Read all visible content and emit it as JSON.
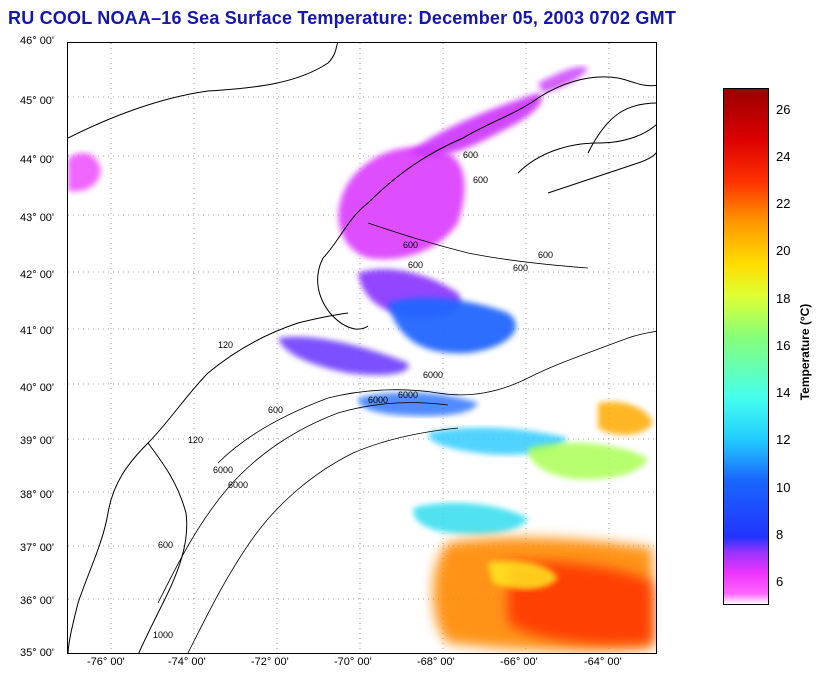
{
  "title": "RU COOL  NOAA–16  Sea Surface Temperature:  December 05, 2003 0702 GMT",
  "y_ticks": [
    "46° 00'",
    "45° 00'",
    "44° 00'",
    "43° 00'",
    "42° 00'",
    "41° 00'",
    "40° 00'",
    "39° 00'",
    "38° 00'",
    "37° 00'",
    "36° 00'",
    "35° 00'"
  ],
  "x_ticks": [
    "-76° 00'",
    "-74° 00'",
    "-72° 00'",
    "-70° 00'",
    "-68° 00'",
    "-66° 00'",
    "-64° 00'"
  ],
  "colorbar": {
    "title": "Temperature (°C)",
    "ticks": [
      "26",
      "24",
      "22",
      "20",
      "18",
      "16",
      "14",
      "12",
      "10",
      "8",
      "6"
    ]
  },
  "contour_labels": [
    "600",
    "600",
    "600",
    "600",
    "600",
    "6000",
    "6000",
    "120",
    "6000",
    "600",
    "600",
    "120",
    "6000",
    "600",
    "6000",
    "1000"
  ]
}
